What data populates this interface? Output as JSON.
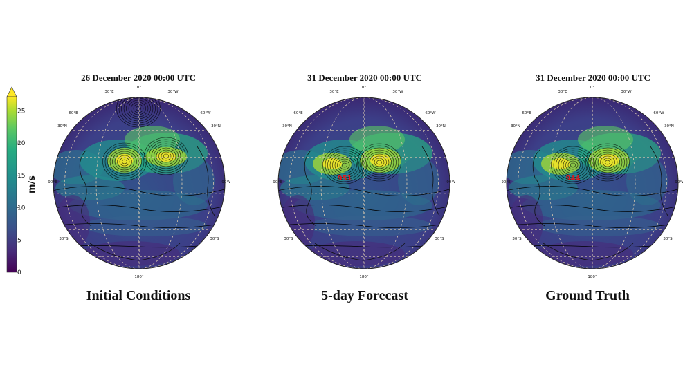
{
  "colorbar": {
    "unit": "m/s",
    "ticks": [
      "0",
      "5",
      "10",
      "15",
      "20",
      "25"
    ],
    "tick_values": [
      0,
      5,
      10,
      15,
      20,
      25
    ],
    "colors": [
      "#440154",
      "#472c7a",
      "#3b518b",
      "#2c718e",
      "#21908d",
      "#27ad81",
      "#5cc863",
      "#aadc32",
      "#fde725"
    ]
  },
  "panels": [
    {
      "title": "26 December 2020 00:00 UTC",
      "caption": "Initial Conditions",
      "center_label": "",
      "lat_labels": [
        "30°N",
        "30°N",
        "30°S",
        "30°S"
      ],
      "lon_labels": [
        "0°",
        "30°E",
        "30°W",
        "60°E",
        "60°W",
        "90°E",
        "90°W",
        "180°"
      ]
    },
    {
      "title": "31 December 2020 00:00 UTC",
      "caption": "5-day Forecast",
      "center_label": "951",
      "lat_labels": [
        "30°N",
        "30°N",
        "30°S",
        "30°S"
      ],
      "lon_labels": [
        "0°",
        "30°E",
        "30°W",
        "60°E",
        "60°W",
        "90°E",
        "90°W",
        "180°"
      ]
    },
    {
      "title": "31 December 2020 00:00 UTC",
      "caption": "Ground Truth",
      "center_label": "944",
      "lat_labels": [
        "30°N",
        "30°N",
        "30°S",
        "30°S"
      ],
      "lon_labels": [
        "0°",
        "30°E",
        "30°W",
        "60°E",
        "60°W",
        "90°E",
        "90°W",
        "180°"
      ]
    }
  ],
  "colors": {
    "ocean_base": "#3b3f8a",
    "low_center_label": "#e0161b",
    "graticule": "#d9c9b0",
    "contour": "#000000"
  }
}
